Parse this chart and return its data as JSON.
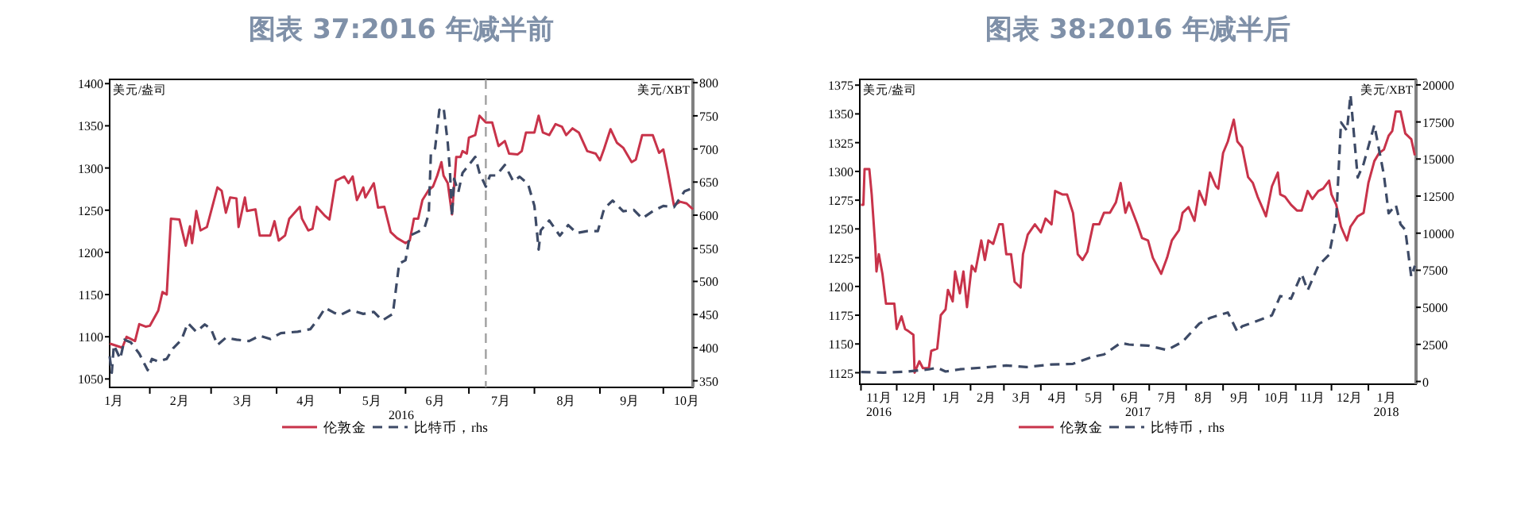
{
  "chart_data": [
    {
      "type": "line",
      "title": "图表 37:2016 年减半前",
      "ylabel": "美元/盎司",
      "y2label": "美元/XBT",
      "xlabel": "2016",
      "legend": "bottom",
      "xlim": [
        "2016-01-13",
        "2016-10-15"
      ],
      "xticks": [
        {
          "value": "2016-01-15",
          "label": "1月"
        },
        {
          "value": "2016-02-01",
          "label": null
        },
        {
          "value": "2016-02-15",
          "label": "2月"
        },
        {
          "value": "2016-03-01",
          "label": null
        },
        {
          "value": "2016-03-16",
          "label": "3月"
        },
        {
          "value": "2016-04-01",
          "label": null
        },
        {
          "value": "2016-04-15",
          "label": "4月"
        },
        {
          "value": "2016-05-01",
          "label": null
        },
        {
          "value": "2016-05-16",
          "label": "5月"
        },
        {
          "value": "2016-06-01",
          "label": null
        },
        {
          "value": "2016-06-15",
          "label": "6月"
        },
        {
          "value": "2016-07-01",
          "label": null
        },
        {
          "value": "2016-07-16",
          "label": "7月"
        },
        {
          "value": "2016-08-01",
          "label": null
        },
        {
          "value": "2016-08-16",
          "label": "8月"
        },
        {
          "value": "2016-09-01",
          "label": null
        },
        {
          "value": "2016-09-15",
          "label": "9月"
        },
        {
          "value": "2016-10-01",
          "label": null
        },
        {
          "value": "2016-10-12",
          "label": "10月"
        }
      ],
      "ylim": [
        1040,
        1405
      ],
      "yticks": [
        1050,
        1100,
        1150,
        1200,
        1250,
        1300,
        1350,
        1400
      ],
      "y2lim": [
        340,
        805
      ],
      "y2ticks": [
        350,
        400,
        450,
        500,
        550,
        600,
        650,
        700,
        750,
        800
      ],
      "ref_lines": [
        {
          "axis": "x",
          "value": "2016-07-09",
          "label": null,
          "color": "#a0a0a0",
          "line_style": "dashed"
        }
      ],
      "series": [
        {
          "name": "伦敦金",
          "color": "#c8334a",
          "line_style": "solid",
          "x": [
            "2016-01-13",
            "2016-01-19",
            "2016-01-21",
            "2016-01-25",
            "2016-01-27",
            "2016-01-30",
            "2016-02-01",
            "2016-02-05",
            "2016-02-07",
            "2016-02-09",
            "2016-02-11",
            "2016-02-15",
            "2016-02-18",
            "2016-02-20",
            "2016-02-21",
            "2016-02-23",
            "2016-02-25",
            "2016-02-28",
            "2016-03-04",
            "2016-03-06",
            "2016-03-08",
            "2016-03-10",
            "2016-03-13",
            "2016-03-14",
            "2016-03-17",
            "2016-03-18",
            "2016-03-22",
            "2016-03-24",
            "2016-03-29",
            "2016-03-31",
            "2016-04-02",
            "2016-04-05",
            "2016-04-07",
            "2016-04-12",
            "2016-04-13",
            "2016-04-16",
            "2016-04-18",
            "2016-04-20",
            "2016-04-24",
            "2016-04-26",
            "2016-04-29",
            "2016-05-03",
            "2016-05-05",
            "2016-05-07",
            "2016-05-09",
            "2016-05-12",
            "2016-05-13",
            "2016-05-17",
            "2016-05-19",
            "2016-05-22",
            "2016-05-25",
            "2016-05-28",
            "2016-06-01",
            "2016-06-03",
            "2016-06-05",
            "2016-06-07",
            "2016-06-09",
            "2016-06-12",
            "2016-06-14",
            "2016-06-16",
            "2016-06-18",
            "2016-06-19",
            "2016-06-21",
            "2016-06-23",
            "2016-06-25",
            "2016-06-27",
            "2016-06-28",
            "2016-06-30",
            "2016-07-01",
            "2016-07-04",
            "2016-07-06",
            "2016-07-09",
            "2016-07-12",
            "2016-07-15",
            "2016-07-18",
            "2016-07-20",
            "2016-07-24",
            "2016-07-26",
            "2016-07-28",
            "2016-08-01",
            "2016-08-03",
            "2016-08-05",
            "2016-08-08",
            "2016-08-11",
            "2016-08-14",
            "2016-08-16",
            "2016-08-19",
            "2016-08-22",
            "2016-08-26",
            "2016-08-30",
            "2016-09-01",
            "2016-09-03",
            "2016-09-06",
            "2016-09-09",
            "2016-09-12",
            "2016-09-16",
            "2016-09-18",
            "2016-09-21",
            "2016-09-26",
            "2016-09-29",
            "2016-10-01",
            "2016-10-03",
            "2016-10-06",
            "2016-10-09",
            "2016-10-12",
            "2016-10-15"
          ],
          "values": [
            1092,
            1087,
            1100,
            1095,
            1115,
            1112,
            1113,
            1131,
            1153,
            1150,
            1240,
            1239,
            1208,
            1231,
            1211,
            1249,
            1226,
            1230,
            1277,
            1273,
            1247,
            1265,
            1264,
            1230,
            1265,
            1249,
            1251,
            1220,
            1220,
            1237,
            1214,
            1220,
            1240,
            1254,
            1240,
            1226,
            1228,
            1254,
            1243,
            1239,
            1285,
            1290,
            1282,
            1290,
            1262,
            1277,
            1265,
            1282,
            1253,
            1254,
            1224,
            1217,
            1211,
            1214,
            1240,
            1240,
            1262,
            1274,
            1278,
            1291,
            1307,
            1291,
            1282,
            1245,
            1313,
            1313,
            1320,
            1317,
            1336,
            1339,
            1362,
            1354,
            1354,
            1326,
            1332,
            1317,
            1316,
            1320,
            1342,
            1342,
            1362,
            1342,
            1339,
            1352,
            1349,
            1339,
            1347,
            1342,
            1320,
            1317,
            1309,
            1323,
            1346,
            1330,
            1324,
            1307,
            1310,
            1339,
            1339,
            1318,
            1322,
            1297,
            1256,
            1260,
            1258,
            1251
          ]
        },
        {
          "name": "比特币，rhs",
          "color": "#3d4a66",
          "line_style": "dashed",
          "axis": "y2",
          "x": [
            "2016-01-13",
            "2016-01-14",
            "2016-01-15",
            "2016-01-18",
            "2016-01-20",
            "2016-01-23",
            "2016-01-27",
            "2016-01-31",
            "2016-02-02",
            "2016-02-05",
            "2016-02-09",
            "2016-02-12",
            "2016-02-16",
            "2016-02-19",
            "2016-02-23",
            "2016-02-27",
            "2016-03-01",
            "2016-03-04",
            "2016-03-08",
            "2016-03-13",
            "2016-03-19",
            "2016-03-24",
            "2016-03-29",
            "2016-04-03",
            "2016-04-11",
            "2016-04-17",
            "2016-04-21",
            "2016-04-24",
            "2016-04-28",
            "2016-05-01",
            "2016-05-06",
            "2016-05-12",
            "2016-05-17",
            "2016-05-21",
            "2016-05-26",
            "2016-05-29",
            "2016-06-01",
            "2016-06-03",
            "2016-06-07",
            "2016-06-10",
            "2016-06-12",
            "2016-06-13",
            "2016-06-15",
            "2016-06-17",
            "2016-06-19",
            "2016-06-21",
            "2016-06-22",
            "2016-06-23",
            "2016-06-24",
            "2016-06-26",
            "2016-06-28",
            "2016-07-01",
            "2016-07-04",
            "2016-07-06",
            "2016-07-09",
            "2016-07-11",
            "2016-07-14",
            "2016-07-18",
            "2016-07-22",
            "2016-07-25",
            "2016-07-29",
            "2016-08-01",
            "2016-08-03",
            "2016-08-04",
            "2016-08-08",
            "2016-08-13",
            "2016-08-17",
            "2016-08-21",
            "2016-08-26",
            "2016-08-31",
            "2016-09-03",
            "2016-09-07",
            "2016-09-12",
            "2016-09-17",
            "2016-09-21",
            "2016-09-26",
            "2016-10-01",
            "2016-10-06",
            "2016-10-11",
            "2016-10-15"
          ],
          "values": [
            387,
            362,
            404,
            383,
            412,
            408,
            391,
            366,
            383,
            379,
            383,
            399,
            412,
            437,
            424,
            435,
            428,
            404,
            415,
            412,
            410,
            418,
            413,
            422,
            424,
            428,
            445,
            460,
            453,
            449,
            457,
            451,
            454,
            441,
            451,
            527,
            532,
            569,
            575,
            581,
            602,
            693,
            701,
            759,
            763,
            709,
            668,
            598,
            655,
            635,
            664,
            676,
            688,
            664,
            643,
            660,
            660,
            676,
            651,
            658,
            647,
            614,
            548,
            577,
            592,
            569,
            585,
            573,
            576,
            576,
            610,
            622,
            606,
            608,
            595,
            606,
            614,
            612,
            636,
            641
          ]
        }
      ]
    },
    {
      "type": "line",
      "title": "图表 38:2016 年减半后",
      "ylabel": "美元/盎司",
      "y2label": "美元/XBT",
      "xlabel": "2017",
      "legend": "bottom",
      "xlim": [
        "2016-10-31",
        "2018-02-10"
      ],
      "xticks": [
        {
          "value": "2016-11-01",
          "label": null
        },
        {
          "value": "2016-11-16",
          "label": "11月\n2016"
        },
        {
          "value": "2016-12-01",
          "label": null
        },
        {
          "value": "2016-12-16",
          "label": "12月"
        },
        {
          "value": "2017-01-01",
          "label": null
        },
        {
          "value": "2017-01-16",
          "label": "1月"
        },
        {
          "value": "2017-02-01",
          "label": null
        },
        {
          "value": "2017-02-14",
          "label": "2月"
        },
        {
          "value": "2017-03-01",
          "label": null
        },
        {
          "value": "2017-03-16",
          "label": "3月"
        },
        {
          "value": "2017-04-01",
          "label": null
        },
        {
          "value": "2017-04-15",
          "label": "4月"
        },
        {
          "value": "2017-05-01",
          "label": null
        },
        {
          "value": "2017-05-16",
          "label": "5月"
        },
        {
          "value": "2017-06-01",
          "label": null
        },
        {
          "value": "2017-06-15",
          "label": "6月"
        },
        {
          "value": "2017-07-01",
          "label": null
        },
        {
          "value": "2017-07-16",
          "label": "7月"
        },
        {
          "value": "2017-08-01",
          "label": null
        },
        {
          "value": "2017-08-16",
          "label": "8月"
        },
        {
          "value": "2017-09-01",
          "label": null
        },
        {
          "value": "2017-09-15",
          "label": "9月"
        },
        {
          "value": "2017-10-01",
          "label": null
        },
        {
          "value": "2017-10-16",
          "label": "10月"
        },
        {
          "value": "2017-11-01",
          "label": null
        },
        {
          "value": "2017-11-15",
          "label": "11月"
        },
        {
          "value": "2017-12-01",
          "label": null
        },
        {
          "value": "2017-12-16",
          "label": "12月"
        },
        {
          "value": "2018-01-01",
          "label": null
        },
        {
          "value": "2018-01-16",
          "label": "1月\n2018"
        }
      ],
      "ylim": [
        1115,
        1380
      ],
      "yticks": [
        1125,
        1150,
        1175,
        1200,
        1225,
        1250,
        1275,
        1300,
        1325,
        1350,
        1375
      ],
      "y2lim": [
        -185,
        20370
      ],
      "y2ticks": [
        0,
        2500,
        5000,
        7500,
        10000,
        12500,
        15000,
        17500,
        20000
      ],
      "series": [
        {
          "name": "伦敦金",
          "color": "#c8334a",
          "line_style": "solid",
          "x": [
            "2016-11-01",
            "2016-11-03",
            "2016-11-04",
            "2016-11-08",
            "2016-11-10",
            "2016-11-13",
            "2016-11-14",
            "2016-11-16",
            "2016-11-19",
            "2016-11-22",
            "2016-11-29",
            "2016-12-01",
            "2016-12-05",
            "2016-12-08",
            "2016-12-11",
            "2016-12-15",
            "2016-12-16",
            "2016-12-20",
            "2016-12-23",
            "2016-12-28",
            "2016-12-30",
            "2017-01-04",
            "2017-01-07",
            "2017-01-11",
            "2017-01-13",
            "2017-01-17",
            "2017-01-19",
            "2017-01-23",
            "2017-01-26",
            "2017-01-29",
            "2017-02-02",
            "2017-02-05",
            "2017-02-10",
            "2017-02-13",
            "2017-02-16",
            "2017-02-20",
            "2017-02-25",
            "2017-02-28",
            "2017-03-03",
            "2017-03-07",
            "2017-03-10",
            "2017-03-15",
            "2017-03-17",
            "2017-03-21",
            "2017-03-27",
            "2017-04-01",
            "2017-04-05",
            "2017-04-10",
            "2017-04-13",
            "2017-04-19",
            "2017-04-23",
            "2017-04-28",
            "2017-05-02",
            "2017-05-06",
            "2017-05-10",
            "2017-05-15",
            "2017-05-20",
            "2017-05-24",
            "2017-05-29",
            "2017-06-03",
            "2017-06-07",
            "2017-06-11",
            "2017-06-14",
            "2017-06-21",
            "2017-06-25",
            "2017-06-30",
            "2017-07-04",
            "2017-07-11",
            "2017-07-16",
            "2017-07-20",
            "2017-07-26",
            "2017-07-29",
            "2017-08-03",
            "2017-08-08",
            "2017-08-12",
            "2017-08-17",
            "2017-08-21",
            "2017-08-26",
            "2017-08-28",
            "2017-09-01",
            "2017-09-05",
            "2017-09-10",
            "2017-09-13",
            "2017-09-17",
            "2017-09-22",
            "2017-09-26",
            "2017-09-30",
            "2017-10-05",
            "2017-10-07",
            "2017-10-12",
            "2017-10-17",
            "2017-10-19",
            "2017-10-23",
            "2017-10-28",
            "2017-11-02",
            "2017-11-06",
            "2017-11-11",
            "2017-11-15",
            "2017-11-20",
            "2017-11-24",
            "2017-11-29",
            "2017-12-01",
            "2017-12-05",
            "2017-12-09",
            "2017-12-14",
            "2017-12-17",
            "2017-12-23",
            "2017-12-28",
            "2018-01-01",
            "2018-01-06",
            "2018-01-10",
            "2018-01-14",
            "2018-01-18",
            "2018-01-21",
            "2018-01-24",
            "2018-01-28",
            "2018-02-01",
            "2018-02-06",
            "2018-02-09"
          ],
          "values": [
            1271,
            1271,
            1302,
            1302,
            1280,
            1235,
            1213,
            1228,
            1211,
            1185,
            1185,
            1163,
            1174,
            1163,
            1161,
            1158,
            1125,
            1135,
            1129,
            1129,
            1144,
            1146,
            1175,
            1180,
            1197,
            1187,
            1213,
            1194,
            1213,
            1182,
            1218,
            1213,
            1240,
            1223,
            1240,
            1237,
            1254,
            1254,
            1228,
            1228,
            1204,
            1199,
            1228,
            1245,
            1254,
            1247,
            1259,
            1254,
            1283,
            1280,
            1280,
            1264,
            1228,
            1223,
            1230,
            1254,
            1254,
            1264,
            1264,
            1273,
            1290,
            1264,
            1273,
            1254,
            1242,
            1240,
            1225,
            1211,
            1225,
            1240,
            1249,
            1264,
            1269,
            1257,
            1283,
            1271,
            1299,
            1287,
            1285,
            1316,
            1326,
            1345,
            1326,
            1321,
            1295,
            1290,
            1278,
            1266,
            1261,
            1287,
            1299,
            1280,
            1278,
            1271,
            1266,
            1266,
            1283,
            1276,
            1283,
            1285,
            1292,
            1280,
            1271,
            1252,
            1240,
            1252,
            1261,
            1264,
            1290,
            1309,
            1316,
            1319,
            1331,
            1335,
            1352,
            1352,
            1333,
            1328,
            1314
          ]
        },
        {
          "name": "比特币，rhs",
          "color": "#3d4a66",
          "line_style": "dashed",
          "axis": "y2",
          "x": [
            "2016-11-01",
            "2016-11-20",
            "2016-12-10",
            "2016-12-28",
            "2017-01-04",
            "2017-01-11",
            "2017-01-23",
            "2017-02-10",
            "2017-03-03",
            "2017-03-20",
            "2017-04-10",
            "2017-04-28",
            "2017-05-15",
            "2017-05-24",
            "2017-06-07",
            "2017-06-14",
            "2017-06-30",
            "2017-07-16",
            "2017-07-29",
            "2017-08-12",
            "2017-08-21",
            "2017-08-28",
            "2017-09-05",
            "2017-09-13",
            "2017-09-17",
            "2017-09-26",
            "2017-10-12",
            "2017-10-19",
            "2017-10-28",
            "2017-11-06",
            "2017-11-11",
            "2017-11-20",
            "2017-11-29",
            "2017-12-05",
            "2017-12-09",
            "2017-12-14",
            "2017-12-17",
            "2017-12-23",
            "2017-12-28",
            "2018-01-06",
            "2018-01-14",
            "2018-01-18",
            "2018-01-24",
            "2018-01-28",
            "2018-02-01",
            "2018-02-06",
            "2018-02-09"
          ],
          "values": [
            634,
            600,
            670,
            820,
            930,
            670,
            820,
            930,
            1080,
            970,
            1150,
            1190,
            1675,
            1820,
            2600,
            2490,
            2420,
            2120,
            2680,
            3900,
            4280,
            4460,
            4650,
            3350,
            3720,
            3980,
            4460,
            5760,
            5580,
            7250,
            6140,
            7810,
            8550,
            10970,
            17470,
            16910,
            19330,
            13750,
            14680,
            17290,
            13940,
            11340,
            11900,
            10600,
            10220,
            7060,
            7810
          ]
        }
      ]
    }
  ]
}
